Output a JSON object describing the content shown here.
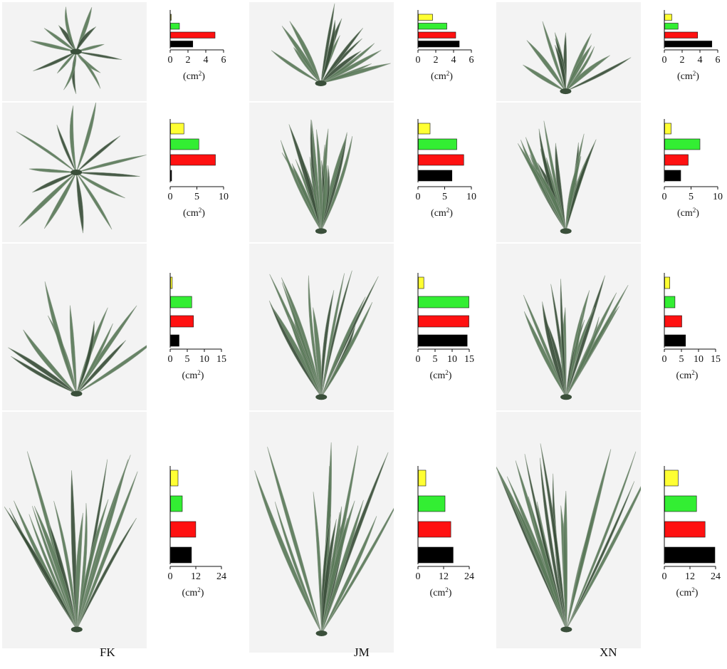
{
  "column_labels": [
    "FK",
    "JM",
    "XN"
  ],
  "colors": {
    "bar_colors": [
      "#ffff33",
      "#33ee33",
      "#ff1111",
      "#000000"
    ],
    "plant_leaf": "#5b7a5a",
    "plant_dark": "#3a4f3a",
    "panel_bg": "#f3f3f3"
  },
  "chart_data": [
    {
      "type": "bar",
      "orientation": "horizontal",
      "column": "FK",
      "row": 1,
      "values": [
        0,
        1,
        5,
        2.5
      ],
      "xlim": [
        0,
        6
      ],
      "xticks": [
        "0",
        "2",
        "4",
        "6"
      ],
      "unit": "(cm2)"
    },
    {
      "type": "bar",
      "orientation": "horizontal",
      "column": "JM",
      "row": 1,
      "values": [
        1.6,
        3.2,
        4.2,
        4.6
      ],
      "xlim": [
        0,
        6
      ],
      "xticks": [
        "0",
        "2",
        "4",
        "6"
      ],
      "unit": "(cm2)"
    },
    {
      "type": "bar",
      "orientation": "horizontal",
      "column": "XN",
      "row": 1,
      "values": [
        0.8,
        1.5,
        3.7,
        5.3
      ],
      "xlim": [
        0,
        6
      ],
      "xticks": [
        "0",
        "2",
        "4",
        "6"
      ],
      "unit": "(cm2)"
    },
    {
      "type": "bar",
      "orientation": "horizontal",
      "column": "FK",
      "row": 2,
      "values": [
        2.5,
        5.3,
        8.4,
        0.2
      ],
      "xlim": [
        0,
        10
      ],
      "xticks": [
        "0",
        "5",
        "10"
      ],
      "unit": "(cm2)"
    },
    {
      "type": "bar",
      "orientation": "horizontal",
      "column": "JM",
      "row": 2,
      "values": [
        2.2,
        7.2,
        8.5,
        6.3
      ],
      "xlim": [
        0,
        10
      ],
      "xticks": [
        "0",
        "5",
        "10"
      ],
      "unit": "(cm2)"
    },
    {
      "type": "bar",
      "orientation": "horizontal",
      "column": "XN",
      "row": 2,
      "values": [
        1.2,
        6.6,
        4.4,
        3
      ],
      "xlim": [
        0,
        10
      ],
      "xticks": [
        "0",
        "5",
        "10"
      ],
      "unit": "(cm2)"
    },
    {
      "type": "bar",
      "orientation": "horizontal",
      "column": "FK",
      "row": 3,
      "values": [
        0.5,
        6.2,
        6.7,
        2.5
      ],
      "xlim": [
        0,
        15
      ],
      "xticks": [
        "0",
        "5",
        "10",
        "15"
      ],
      "unit": "(cm2)"
    },
    {
      "type": "bar",
      "orientation": "horizontal",
      "column": "JM",
      "row": 3,
      "values": [
        1.6,
        14.8,
        14.8,
        14.3
      ],
      "xlim": [
        0,
        15
      ],
      "xticks": [
        "0",
        "5",
        "10",
        "15"
      ],
      "unit": "(cm2)"
    },
    {
      "type": "bar",
      "orientation": "horizontal",
      "column": "XN",
      "row": 3,
      "values": [
        1.5,
        3,
        5,
        6.1
      ],
      "xlim": [
        0,
        15
      ],
      "xticks": [
        "0",
        "5",
        "10",
        "15"
      ],
      "unit": "(cm2)"
    },
    {
      "type": "bar",
      "orientation": "horizontal",
      "column": "FK",
      "row": 4,
      "values": [
        3.5,
        5.5,
        11.8,
        9.8
      ],
      "xlim": [
        0,
        24
      ],
      "xticks": [
        "0",
        "12",
        "24"
      ],
      "unit": "(cm2)"
    },
    {
      "type": "bar",
      "orientation": "horizontal",
      "column": "JM",
      "row": 4,
      "values": [
        3.5,
        12.5,
        15.2,
        16.3
      ],
      "xlim": [
        0,
        24
      ],
      "xticks": [
        "0",
        "12",
        "24"
      ],
      "unit": "(cm2)"
    },
    {
      "type": "bar",
      "orientation": "horizontal",
      "column": "XN",
      "row": 4,
      "values": [
        6.3,
        14.9,
        18.9,
        23.5
      ],
      "xlim": [
        0,
        24
      ],
      "xticks": [
        "0",
        "12",
        "24"
      ],
      "unit": "(cm2)"
    }
  ]
}
